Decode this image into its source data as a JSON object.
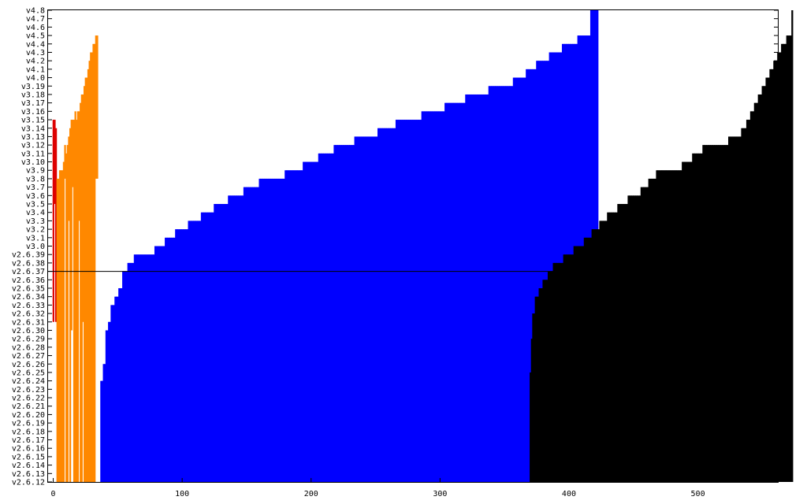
{
  "chart_data": {
    "type": "bar",
    "title": "",
    "xlabel": "",
    "ylabel": "",
    "xlim": [
      -4,
      562
    ],
    "x_ticks": [
      0,
      100,
      200,
      300,
      400,
      500
    ],
    "y_ticks": [
      "v2.6.12",
      "v2.6.13",
      "v2.6.14",
      "v2.6.15",
      "v2.6.16",
      "v2.6.17",
      "v2.6.18",
      "v2.6.19",
      "v2.6.20",
      "v2.6.21",
      "v2.6.22",
      "v2.6.23",
      "v2.6.24",
      "v2.6.25",
      "v2.6.26",
      "v2.6.27",
      "v2.6.28",
      "v2.6.29",
      "v2.6.30",
      "v2.6.31",
      "v2.6.32",
      "v2.6.33",
      "v2.6.34",
      "v2.6.35",
      "v2.6.36",
      "v2.6.37",
      "v2.6.38",
      "v2.6.39",
      "v3.0",
      "v3.1",
      "v3.2",
      "v3.3",
      "v3.4",
      "v3.5",
      "v3.6",
      "v3.7",
      "v3.8",
      "v3.9",
      "v3.10",
      "v3.11",
      "v3.12",
      "v3.13",
      "v3.14",
      "v3.15",
      "v3.16",
      "v3.17",
      "v3.18",
      "v3.19",
      "v4.0",
      "v4.1",
      "v4.2",
      "v4.3",
      "v4.4",
      "v4.5",
      "v4.6",
      "v4.7",
      "v4.8"
    ],
    "reference_line": "v2.6.37",
    "series": [
      {
        "name": "red",
        "color": "#dd0000",
        "x_start": 0,
        "top": [
          "v3.15",
          "v3.15",
          "v3.14"
        ],
        "bottom": [
          "v2.6.31",
          "v3.5",
          "v2.6.31"
        ]
      },
      {
        "name": "orange",
        "color": "#ff8800",
        "x_start": 3,
        "top": [
          "v3.8",
          "v3.8",
          "v3.9",
          "v3.9",
          "v3.9",
          "v3.10",
          "v3.12",
          "v3.11",
          "v3.12",
          "v3.13",
          "v3.14",
          "v3.15",
          "v3.15",
          "v3.15",
          "v3.16",
          "v3.15",
          "v3.16",
          "v3.16",
          "v3.17",
          "v3.18",
          "v3.18",
          "v3.19",
          "v4.0",
          "v4.0",
          "v4.1",
          "v4.2",
          "v4.3",
          "v4.3",
          "v4.4",
          "v4.4",
          "v4.5",
          "v4.5"
        ],
        "bottom": [
          "v2.6.12",
          "v2.6.12",
          "v2.6.12",
          "v2.6.12",
          "v2.6.12",
          "v2.6.12",
          "v3.8",
          "v2.6.12",
          "v2.6.12",
          "v3.3",
          "v2.6.12",
          "v2.6.30",
          "v3.7",
          "v2.6.12",
          "v2.6.12",
          "v2.6.12",
          "v2.6.12",
          "v3.3",
          "v2.6.12",
          "v2.6.12",
          "v2.6.31",
          "v2.6.12",
          "v2.6.12",
          "v2.6.12",
          "v2.6.12",
          "v2.6.12",
          "v2.6.12",
          "v2.6.12",
          "v2.6.12",
          "v2.6.12",
          "v3.8",
          "v3.8"
        ]
      },
      {
        "name": "blue",
        "color": "#0000ff",
        "x_start": 37,
        "steps": [
          {
            "n": 2,
            "top": "v2.6.24"
          },
          {
            "n": 2,
            "top": "v2.6.26"
          },
          {
            "n": 2,
            "top": "v2.6.30"
          },
          {
            "n": 2,
            "top": "v2.6.31"
          },
          {
            "n": 3,
            "top": "v2.6.33"
          },
          {
            "n": 3,
            "top": "v2.6.34"
          },
          {
            "n": 3,
            "top": "v2.6.35"
          },
          {
            "n": 4,
            "top": "v2.6.37"
          },
          {
            "n": 5,
            "top": "v2.6.38"
          },
          {
            "n": 16,
            "top": "v2.6.39"
          },
          {
            "n": 8,
            "top": "v3.0"
          },
          {
            "n": 8,
            "top": "v3.1"
          },
          {
            "n": 10,
            "top": "v3.2"
          },
          {
            "n": 10,
            "top": "v3.3"
          },
          {
            "n": 10,
            "top": "v3.4"
          },
          {
            "n": 11,
            "top": "v3.5"
          },
          {
            "n": 12,
            "top": "v3.6"
          },
          {
            "n": 12,
            "top": "v3.7"
          },
          {
            "n": 20,
            "top": "v3.8"
          },
          {
            "n": 14,
            "top": "v3.9"
          },
          {
            "n": 12,
            "top": "v3.10"
          },
          {
            "n": 12,
            "top": "v3.11"
          },
          {
            "n": 16,
            "top": "v3.12"
          },
          {
            "n": 18,
            "top": "v3.13"
          },
          {
            "n": 14,
            "top": "v3.14"
          },
          {
            "n": 20,
            "top": "v3.15"
          },
          {
            "n": 18,
            "top": "v3.16"
          },
          {
            "n": 16,
            "top": "v3.17"
          },
          {
            "n": 18,
            "top": "v3.18"
          },
          {
            "n": 19,
            "top": "v3.19"
          },
          {
            "n": 10,
            "top": "v4.0"
          },
          {
            "n": 8,
            "top": "v4.1"
          },
          {
            "n": 10,
            "top": "v4.2"
          },
          {
            "n": 10,
            "top": "v4.3"
          },
          {
            "n": 12,
            "top": "v4.4"
          },
          {
            "n": 10,
            "top": "v4.5"
          },
          {
            "n": 6,
            "top": "v4.8"
          }
        ]
      },
      {
        "name": "black",
        "color": "#000000",
        "x_start": 370,
        "steps": [
          {
            "n": 1,
            "top": "v2.6.25"
          },
          {
            "n": 1,
            "top": "v2.6.29"
          },
          {
            "n": 2,
            "top": "v2.6.32"
          },
          {
            "n": 3,
            "top": "v2.6.34"
          },
          {
            "n": 3,
            "top": "v2.6.35"
          },
          {
            "n": 4,
            "top": "v2.6.36"
          },
          {
            "n": 4,
            "top": "v2.6.37"
          },
          {
            "n": 8,
            "top": "v2.6.38"
          },
          {
            "n": 8,
            "top": "v2.6.39"
          },
          {
            "n": 8,
            "top": "v3.0"
          },
          {
            "n": 6,
            "top": "v3.1"
          },
          {
            "n": 6,
            "top": "v3.2"
          },
          {
            "n": 6,
            "top": "v3.3"
          },
          {
            "n": 8,
            "top": "v3.4"
          },
          {
            "n": 8,
            "top": "v3.5"
          },
          {
            "n": 10,
            "top": "v3.6"
          },
          {
            "n": 6,
            "top": "v3.7"
          },
          {
            "n": 6,
            "top": "v3.8"
          },
          {
            "n": 20,
            "top": "v3.9"
          },
          {
            "n": 8,
            "top": "v3.10"
          },
          {
            "n": 8,
            "top": "v3.11"
          },
          {
            "n": 20,
            "top": "v3.12"
          },
          {
            "n": 10,
            "top": "v3.13"
          },
          {
            "n": 4,
            "top": "v3.14"
          },
          {
            "n": 3,
            "top": "v3.15"
          },
          {
            "n": 3,
            "top": "v3.16"
          },
          {
            "n": 3,
            "top": "v3.17"
          },
          {
            "n": 3,
            "top": "v3.18"
          },
          {
            "n": 3,
            "top": "v3.19"
          },
          {
            "n": 3,
            "top": "v4.0"
          },
          {
            "n": 3,
            "top": "v4.1"
          },
          {
            "n": 3,
            "top": "v4.2"
          },
          {
            "n": 3,
            "top": "v4.3"
          },
          {
            "n": 4,
            "top": "v4.4"
          },
          {
            "n": 4,
            "top": "v4.5"
          },
          {
            "n": 1,
            "top": "v4.8"
          }
        ]
      }
    ]
  }
}
